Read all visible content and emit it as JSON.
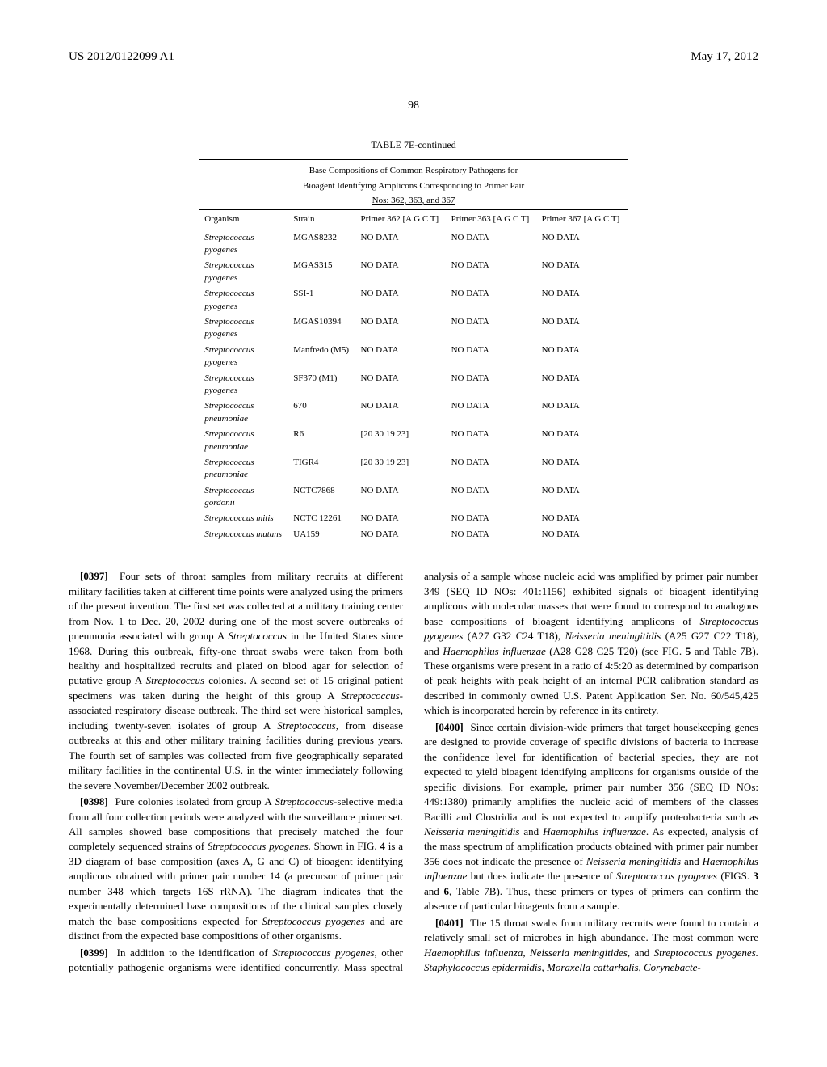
{
  "header": {
    "left": "US 2012/0122099 A1",
    "right": "May 17, 2012"
  },
  "pageNumber": "98",
  "table": {
    "caption": "TABLE 7E-continued",
    "subcaption1": "Base Compositions of Common Respiratory Pathogens for",
    "subcaption2": "Bioagent Identifying Amplicons Corresponding to Primer Pair",
    "subcaption3": "Nos: 362, 363, and 367",
    "columns": {
      "c0": "Organism",
      "c1": "Strain",
      "c2": "Primer 362 [A G C T]",
      "c3": "Primer 363 [A G C T]",
      "c4": "Primer 367 [A G C T]"
    },
    "rows": [
      {
        "org": "Streptococcus pyogenes",
        "strain": "MGAS8232",
        "p362": "NO DATA",
        "p363": "NO DATA",
        "p367": "NO DATA"
      },
      {
        "org": "Streptococcus pyogenes",
        "strain": "MGAS315",
        "p362": "NO DATA",
        "p363": "NO DATA",
        "p367": "NO DATA"
      },
      {
        "org": "Streptococcus pyogenes",
        "strain": "SSI-1",
        "p362": "NO DATA",
        "p363": "NO DATA",
        "p367": "NO DATA"
      },
      {
        "org": "Streptococcus pyogenes",
        "strain": "MGAS10394",
        "p362": "NO DATA",
        "p363": "NO DATA",
        "p367": "NO DATA"
      },
      {
        "org": "Streptococcus pyogenes",
        "strain": "Manfredo (M5)",
        "p362": "NO DATA",
        "p363": "NO DATA",
        "p367": "NO DATA"
      },
      {
        "org": "Streptococcus pyogenes",
        "strain": "SF370 (M1)",
        "p362": "NO DATA",
        "p363": "NO DATA",
        "p367": "NO DATA"
      },
      {
        "org": "Streptococcus pneumoniae",
        "strain": "670",
        "p362": "NO DATA",
        "p363": "NO DATA",
        "p367": "NO DATA"
      },
      {
        "org": "Streptococcus pneumoniae",
        "strain": "R6",
        "p362": "[20 30 19 23]",
        "p363": "NO DATA",
        "p367": "NO DATA"
      },
      {
        "org": "Streptococcus pneumoniae",
        "strain": "TIGR4",
        "p362": "[20 30 19 23]",
        "p363": "NO DATA",
        "p367": "NO DATA"
      },
      {
        "org": "Streptococcus gordonii",
        "strain": "NCTC7868",
        "p362": "NO DATA",
        "p363": "NO DATA",
        "p367": "NO DATA"
      },
      {
        "org": "Streptococcus mitis",
        "strain": "NCTC 12261",
        "p362": "NO DATA",
        "p363": "NO DATA",
        "p367": "NO DATA"
      },
      {
        "org": "Streptococcus mutans",
        "strain": "UA159",
        "p362": "NO DATA",
        "p363": "NO DATA",
        "p367": "NO DATA"
      }
    ]
  },
  "paragraphs": {
    "p0397": {
      "num": "[0397]",
      "text": "Four sets of throat samples from military recruits at different military facilities taken at different time points were analyzed using the primers of the present invention. The first set was collected at a military training center from Nov. 1 to Dec. 20, 2002 during one of the most severe outbreaks of pneumonia associated with group A <i>Streptococcus</i> in the United States since 1968. During this outbreak, fifty-one throat swabs were taken from both healthy and hospitalized recruits and plated on blood agar for selection of putative group A <i>Streptococcus</i> colonies. A second set of 15 original patient specimens was taken during the height of this group A <i>Streptococcus</i>-associated respiratory disease outbreak. The third set were historical samples, including twenty-seven isolates of group A <i>Streptococcus</i>, from disease outbreaks at this and other military training facilities during previous years. The fourth set of samples was collected from five geographically separated military facilities in the continental U.S. in the winter immediately following the severe November/December 2002 outbreak."
    },
    "p0398": {
      "num": "[0398]",
      "text": "Pure colonies isolated from group A <i>Streptococcus</i>-selective media from all four collection periods were analyzed with the surveillance primer set. All samples showed base compositions that precisely matched the four completely sequenced strains of <i>Streptococcus pyogenes</i>. Shown in FIG. <b>4</b> is a 3D diagram of base composition (axes A, G and C) of bioagent identifying amplicons obtained with primer pair number 14 (a precursor of primer pair number 348 which targets 16S rRNA). The diagram indicates that the experimentally determined base compositions of the clinical samples closely match the base compositions expected for <i>Streptococcus pyogenes</i> and are distinct from the expected base compositions of other organisms."
    },
    "p0399": {
      "num": "[0399]",
      "text": "In addition to the identification of <i>Streptococcus pyogenes</i>, other potentially pathogenic organisms were identified concurrently. Mass spectral analysis of a sample whose nucleic acid was amplified by primer pair number 349 (SEQ ID NOs: 401:1156) exhibited signals of bioagent identifying amplicons with molecular masses that were found to correspond to analogous base compositions of bioagent identifying amplicons of <i>Streptococcus pyogenes</i> (A27 G32 C24 T18), <i>Neisseria meningitidis</i> (A25 G27 C22 T18), and <i>Haemophilus influenzae</i> (A28 G28 C25 T20) (see FIG. <b>5</b> and Table 7B). These organisms were present in a ratio of 4:5:20 as determined by comparison of peak heights with peak height of an internal PCR calibration standard as described in commonly owned U.S. Patent Application Ser. No. 60/545,425 which is incorporated herein by reference in its entirety."
    },
    "p0400": {
      "num": "[0400]",
      "text": "Since certain division-wide primers that target housekeeping genes are designed to provide coverage of specific divisions of bacteria to increase the confidence level for identification of bacterial species, they are not expected to yield bioagent identifying amplicons for organisms outside of the specific divisions. For example, primer pair number 356 (SEQ ID NOs: 449:1380) primarily amplifies the nucleic acid of members of the classes Bacilli and Clostridia and is not expected to amplify proteobacteria such as <i>Neisseria meningitidis</i> and <i>Haemophilus influenzae</i>. As expected, analysis of the mass spectrum of amplification products obtained with primer pair number 356 does not indicate the presence of <i>Neisseria meningitidis</i> and <i>Haemophilus influenzae</i> but does indicate the presence of <i>Streptococcus pyogenes</i> (FIGS. <b>3</b> and <b>6</b>, Table 7B). Thus, these primers or types of primers can confirm the absence of particular bioagents from a sample."
    },
    "p0401": {
      "num": "[0401]",
      "text": "The 15 throat swabs from military recruits were found to contain a relatively small set of microbes in high abundance. The most common were <i>Haemophilus influenza, Neisseria meningitides</i>, and <i>Streptococcus pyogenes. Staphylococcus epidermidis, Moraxella cattarhalis, Corynebacte-</i>"
    }
  }
}
